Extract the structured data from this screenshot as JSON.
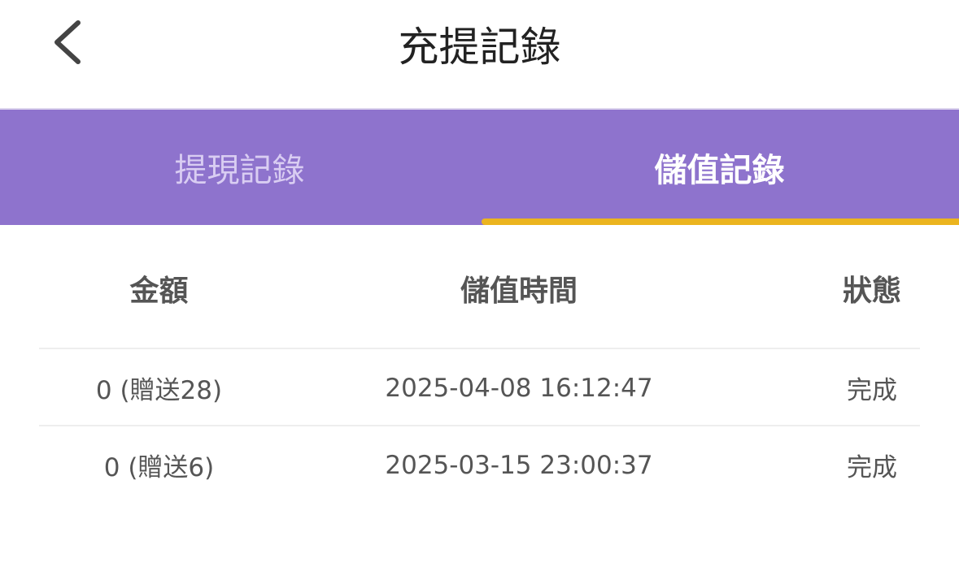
{
  "header": {
    "title": "充提記錄",
    "back_icon": "chevron-left-icon"
  },
  "tabs": [
    {
      "label": "提現記錄",
      "active": false
    },
    {
      "label": "儲值記錄",
      "active": true
    }
  ],
  "colors": {
    "tab_bar": "#8e73cd",
    "indicator": "#ebb41f"
  },
  "table": {
    "columns": [
      "金額",
      "儲值時間",
      "狀態"
    ],
    "rows": [
      {
        "amount": "0 (贈送28)",
        "time": "2025-04-08 16:12:47",
        "status": "完成"
      },
      {
        "amount": "0 (贈送6)",
        "time": "2025-03-15 23:00:37",
        "status": "完成"
      }
    ]
  }
}
